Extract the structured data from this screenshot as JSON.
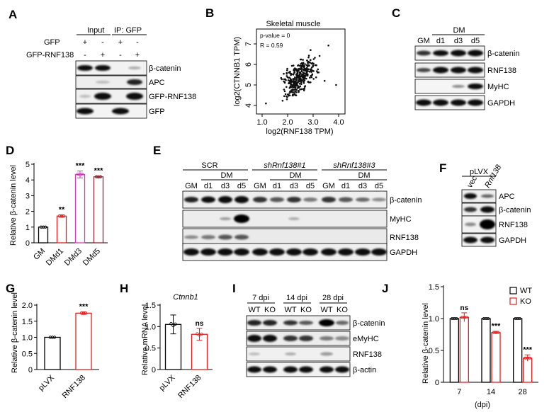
{
  "panel_letters": [
    "A",
    "B",
    "C",
    "D",
    "E",
    "F",
    "G",
    "H",
    "I",
    "J"
  ],
  "colors": {
    "black": "#000000",
    "red": "#e02020",
    "magenta": "#d43ab8",
    "purple": "#9a2a8e",
    "darkred": "#8c2a3a",
    "scatter": "#111111"
  },
  "panelA": {
    "input_label": "Input",
    "ip_label": "IP: GFP",
    "row_labels": [
      "GFP",
      "GFP-RNF138"
    ],
    "row1_signs": [
      "+",
      "-",
      "+",
      "-"
    ],
    "row2_signs": [
      "-",
      "+",
      "-",
      "+"
    ],
    "blot_labels": [
      "β-catenin",
      "APC",
      "GFP-RNF138",
      "GFP"
    ]
  },
  "panelB": {
    "title": "Skeletal muscle",
    "pvalue_text": "p-value = 0",
    "r_text": "R = 0.59",
    "xlabel": "log2(RNF138 TPM)",
    "ylabel": "log2(CTNNB1 TPM)",
    "xticks": [
      "1.0",
      "2.0",
      "3.0",
      "4.0"
    ],
    "yticks": [
      "4",
      "5",
      "6",
      "7"
    ]
  },
  "panelC": {
    "dm_label": "DM",
    "lanes": [
      "GM",
      "d1",
      "d3",
      "d5"
    ],
    "blot_labels": [
      "β-catenin",
      "RNF138",
      "MyHC",
      "GAPDH"
    ]
  },
  "panelE": {
    "groups": [
      "SCR",
      "shRnf138#1",
      "shRnf138#3"
    ],
    "dm_label": "DM",
    "lanes": [
      "GM",
      "d1",
      "d3",
      "d5"
    ],
    "blot_labels": [
      "β-catenin",
      "MyHC",
      "RNF138",
      "GAPDH"
    ]
  },
  "panelF": {
    "header": "pLVX",
    "lanes": [
      "vec",
      "Rnf138"
    ],
    "blot_labels": [
      "APC",
      "β-catenin",
      "RNF138",
      "GAPDH"
    ]
  },
  "panelI": {
    "timepoints": [
      "7 dpi",
      "14 dpi",
      "28 dpi"
    ],
    "genotypes": [
      "WT",
      "KO",
      "WT",
      "KO",
      "WT",
      "KO"
    ],
    "blot_labels": [
      "β-catenin",
      "eMyHC",
      "RNF138",
      "β-actin"
    ]
  },
  "chart_data": [
    {
      "panel": "D",
      "type": "bar",
      "categories": [
        "GM",
        "DMd1",
        "DMd3",
        "DMd5"
      ],
      "values": [
        1.0,
        1.7,
        4.35,
        4.2
      ],
      "errors": [
        0.0,
        0.08,
        0.22,
        0.06
      ],
      "significance": [
        "",
        "**",
        "***",
        "***"
      ],
      "ylabel": "Relative β-catenin level",
      "ylim": [
        0,
        5
      ],
      "yticks": [
        "0",
        "1",
        "2",
        "3",
        "4",
        "5"
      ],
      "bar_colors": [
        "#000000",
        "#e02020",
        "#d43ab8",
        "#8c2a3a"
      ]
    },
    {
      "panel": "G",
      "type": "bar",
      "categories": [
        "pLVX",
        "RNF138"
      ],
      "values": [
        1.0,
        1.75
      ],
      "errors": [
        0.0,
        0.04
      ],
      "significance": [
        "",
        "***"
      ],
      "ylabel": "Relative β-catenin level",
      "ylim": [
        0,
        2.0
      ],
      "yticks": [
        "0",
        "0.5",
        "1.0",
        "1.5",
        "2.0"
      ],
      "bar_colors": [
        "#000000",
        "#e02020"
      ]
    },
    {
      "panel": "H",
      "type": "bar",
      "title": "Ctnnb1",
      "categories": [
        "pLVX",
        "RNF138"
      ],
      "values": [
        1.05,
        0.82
      ],
      "errors": [
        0.22,
        0.14
      ],
      "significance": [
        "",
        "ns"
      ],
      "ylabel": "Relative mRNA level",
      "ylim": [
        0,
        1.5
      ],
      "yticks": [
        "0",
        "0.5",
        "1.0",
        "1.5"
      ],
      "bar_colors": [
        "#000000",
        "#e02020"
      ]
    },
    {
      "panel": "J",
      "type": "bar",
      "categories": [
        "7",
        "14",
        "28"
      ],
      "xlabel": "(dpi)",
      "series": [
        {
          "name": "WT",
          "values": [
            1.0,
            1.0,
            1.0
          ],
          "errors": [
            0.0,
            0.0,
            0.0
          ]
        },
        {
          "name": "KO",
          "values": [
            1.02,
            0.78,
            0.38
          ],
          "errors": [
            0.07,
            0.02,
            0.05
          ]
        }
      ],
      "significance": [
        "ns",
        "***",
        "***"
      ],
      "ylabel": "Relative β-catenin level",
      "ylim": [
        0,
        1.5
      ],
      "yticks": [
        "0",
        "0.5",
        "1.0",
        "1.5"
      ],
      "legend_position": "top-right",
      "bar_colors": [
        "#000000",
        "#e02020"
      ]
    }
  ]
}
